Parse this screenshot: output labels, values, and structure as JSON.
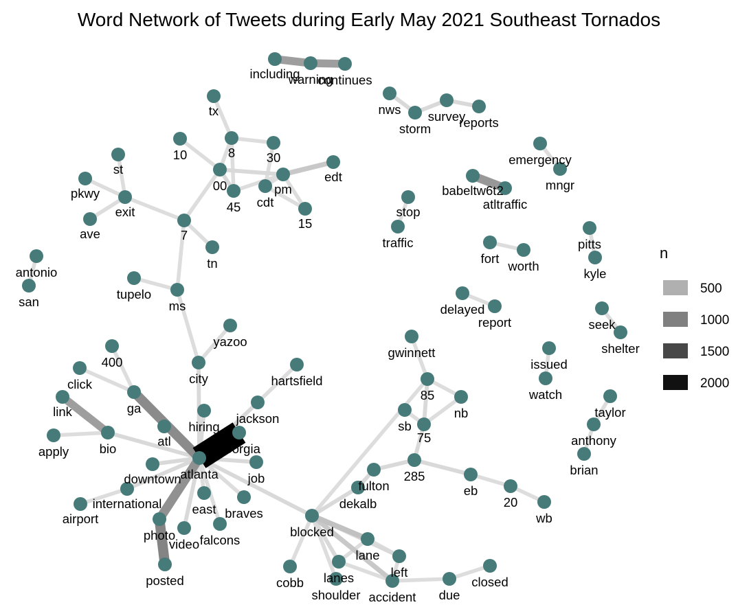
{
  "chart_data": {
    "type": "network",
    "title": "Word Network of Tweets during Early May 2021 Southeast Tornados",
    "node_color": "#467b7a",
    "edge_color_scale": [
      "#bdbdbd",
      "#000000"
    ],
    "legend": {
      "title": "n",
      "placement": "right",
      "entries": [
        {
          "label": "500",
          "n": 500,
          "color": "#b0b0b0"
        },
        {
          "label": "1000",
          "n": 1000,
          "color": "#808080"
        },
        {
          "label": "1500",
          "n": 1500,
          "color": "#474747"
        },
        {
          "label": "2000",
          "n": 2000,
          "color": "#111111"
        }
      ]
    },
    "nodes": [
      {
        "id": "including",
        "label": "including"
      },
      {
        "id": "warning",
        "label": "warning"
      },
      {
        "id": "continues",
        "label": "continues"
      },
      {
        "id": "nws",
        "label": "nws"
      },
      {
        "id": "storm",
        "label": "storm"
      },
      {
        "id": "survey",
        "label": "survey"
      },
      {
        "id": "reports",
        "label": "reports"
      },
      {
        "id": "tx",
        "label": "tx"
      },
      {
        "id": "10",
        "label": "10"
      },
      {
        "id": "8",
        "label": "8"
      },
      {
        "id": "30",
        "label": "30"
      },
      {
        "id": "00",
        "label": "00"
      },
      {
        "id": "edt",
        "label": "edt"
      },
      {
        "id": "pm",
        "label": "pm"
      },
      {
        "id": "45",
        "label": "45"
      },
      {
        "id": "cdt",
        "label": "cdt"
      },
      {
        "id": "15",
        "label": "15"
      },
      {
        "id": "st",
        "label": "st"
      },
      {
        "id": "pkwy",
        "label": "pkwy"
      },
      {
        "id": "exit",
        "label": "exit"
      },
      {
        "id": "ave",
        "label": "ave"
      },
      {
        "id": "7",
        "label": "7"
      },
      {
        "id": "tn",
        "label": "tn"
      },
      {
        "id": "emergency",
        "label": "emergency"
      },
      {
        "id": "mngr",
        "label": "mngr"
      },
      {
        "id": "babeltw6t2",
        "label": "babeltw6t2"
      },
      {
        "id": "atltraffic",
        "label": "atltraffic"
      },
      {
        "id": "stop",
        "label": "stop"
      },
      {
        "id": "traffic",
        "label": "traffic"
      },
      {
        "id": "pitts",
        "label": "pitts"
      },
      {
        "id": "kyle",
        "label": "kyle"
      },
      {
        "id": "fort",
        "label": "fort"
      },
      {
        "id": "worth",
        "label": "worth"
      },
      {
        "id": "antonio",
        "label": "antonio"
      },
      {
        "id": "san",
        "label": "san"
      },
      {
        "id": "tupelo",
        "label": "tupelo"
      },
      {
        "id": "ms",
        "label": "ms"
      },
      {
        "id": "delayed",
        "label": "delayed"
      },
      {
        "id": "report",
        "label": "report"
      },
      {
        "id": "seek",
        "label": "seek"
      },
      {
        "id": "shelter",
        "label": "shelter"
      },
      {
        "id": "yazoo",
        "label": "yazoo"
      },
      {
        "id": "gwinnett",
        "label": "gwinnett"
      },
      {
        "id": "issued",
        "label": "issued"
      },
      {
        "id": "watch",
        "label": "watch"
      },
      {
        "id": "400",
        "label": "400"
      },
      {
        "id": "hartsfield",
        "label": "hartsfield"
      },
      {
        "id": "city",
        "label": "city"
      },
      {
        "id": "click",
        "label": "click"
      },
      {
        "id": "85",
        "label": "85"
      },
      {
        "id": "nb",
        "label": "nb"
      },
      {
        "id": "taylor",
        "label": "taylor"
      },
      {
        "id": "link",
        "label": "link"
      },
      {
        "id": "ga",
        "label": "ga"
      },
      {
        "id": "jackson",
        "label": "jackson"
      },
      {
        "id": "sb",
        "label": "sb"
      },
      {
        "id": "75",
        "label": "75"
      },
      {
        "id": "anthony",
        "label": "anthony"
      },
      {
        "id": "hiring",
        "label": "hiring"
      },
      {
        "id": "apply",
        "label": "apply"
      },
      {
        "id": "bio",
        "label": "bio"
      },
      {
        "id": "atl",
        "label": "atl"
      },
      {
        "id": "georgia",
        "label": "georgia"
      },
      {
        "id": "brian",
        "label": "brian"
      },
      {
        "id": "atlanta",
        "label": "atlanta"
      },
      {
        "id": "job",
        "label": "job"
      },
      {
        "id": "downtown",
        "label": "downtown"
      },
      {
        "id": "285",
        "label": "285"
      },
      {
        "id": "fulton",
        "label": "fulton"
      },
      {
        "id": "eb",
        "label": "eb"
      },
      {
        "id": "international",
        "label": "international"
      },
      {
        "id": "dekalb",
        "label": "dekalb"
      },
      {
        "id": "20",
        "label": "20"
      },
      {
        "id": "east",
        "label": "east"
      },
      {
        "id": "braves",
        "label": "braves"
      },
      {
        "id": "airport",
        "label": "airport"
      },
      {
        "id": "wb",
        "label": "wb"
      },
      {
        "id": "photo",
        "label": "photo"
      },
      {
        "id": "blocked",
        "label": "blocked"
      },
      {
        "id": "video",
        "label": "video"
      },
      {
        "id": "falcons",
        "label": "falcons"
      },
      {
        "id": "lane",
        "label": "lane"
      },
      {
        "id": "left",
        "label": "left"
      },
      {
        "id": "posted",
        "label": "posted"
      },
      {
        "id": "lanes",
        "label": "lanes"
      },
      {
        "id": "cobb",
        "label": "cobb"
      },
      {
        "id": "closed",
        "label": "closed"
      },
      {
        "id": "shoulder",
        "label": "shoulder"
      },
      {
        "id": "accident",
        "label": "accident"
      },
      {
        "id": "due",
        "label": "due"
      }
    ],
    "edges": [
      {
        "from": "including",
        "to": "warning",
        "n": 650
      },
      {
        "from": "warning",
        "to": "continues",
        "n": 650
      },
      {
        "from": "nws",
        "to": "storm",
        "n": 300
      },
      {
        "from": "storm",
        "to": "survey",
        "n": 300
      },
      {
        "from": "survey",
        "to": "reports",
        "n": 300
      },
      {
        "from": "tx",
        "to": "8",
        "n": 280
      },
      {
        "from": "8",
        "to": "30",
        "n": 280
      },
      {
        "from": "8",
        "to": "00",
        "n": 280
      },
      {
        "from": "30",
        "to": "cdt",
        "n": 280
      },
      {
        "from": "00",
        "to": "pm",
        "n": 300
      },
      {
        "from": "00",
        "to": "45",
        "n": 300
      },
      {
        "from": "00",
        "to": "10",
        "n": 280
      },
      {
        "from": "00",
        "to": "7",
        "n": 280
      },
      {
        "from": "8",
        "to": "45",
        "n": 280
      },
      {
        "from": "45",
        "to": "pm",
        "n": 280
      },
      {
        "from": "pm",
        "to": "edt",
        "n": 380
      },
      {
        "from": "pm",
        "to": "cdt",
        "n": 280
      },
      {
        "from": "pm",
        "to": "15",
        "n": 280
      },
      {
        "from": "cdt",
        "to": "15",
        "n": 280
      },
      {
        "from": "st",
        "to": "exit",
        "n": 280
      },
      {
        "from": "pkwy",
        "to": "exit",
        "n": 280
      },
      {
        "from": "ave",
        "to": "exit",
        "n": 280
      },
      {
        "from": "exit",
        "to": "7",
        "n": 280
      },
      {
        "from": "7",
        "to": "tn",
        "n": 280
      },
      {
        "from": "emergency",
        "to": "mngr",
        "n": 280
      },
      {
        "from": "babeltw6t2",
        "to": "atltraffic",
        "n": 700
      },
      {
        "from": "stop",
        "to": "traffic",
        "n": 280
      },
      {
        "from": "pitts",
        "to": "kyle",
        "n": 280
      },
      {
        "from": "fort",
        "to": "worth",
        "n": 280
      },
      {
        "from": "antonio",
        "to": "san",
        "n": 280
      },
      {
        "from": "tupelo",
        "to": "ms",
        "n": 280
      },
      {
        "from": "ms",
        "to": "7",
        "n": 280
      },
      {
        "from": "ms",
        "to": "city",
        "n": 280
      },
      {
        "from": "delayed",
        "to": "report",
        "n": 280
      },
      {
        "from": "seek",
        "to": "shelter",
        "n": 280
      },
      {
        "from": "yazoo",
        "to": "city",
        "n": 280
      },
      {
        "from": "issued",
        "to": "watch",
        "n": 280
      },
      {
        "from": "gwinnett",
        "to": "85",
        "n": 280
      },
      {
        "from": "85",
        "to": "nb",
        "n": 280
      },
      {
        "from": "85",
        "to": "75",
        "n": 300
      },
      {
        "from": "nb",
        "to": "75",
        "n": 280
      },
      {
        "from": "sb",
        "to": "75",
        "n": 280
      },
      {
        "from": "75",
        "to": "285",
        "n": 300
      },
      {
        "from": "85",
        "to": "blocked",
        "n": 280
      },
      {
        "from": "285",
        "to": "fulton",
        "n": 300
      },
      {
        "from": "285",
        "to": "eb",
        "n": 300
      },
      {
        "from": "eb",
        "to": "20",
        "n": 280
      },
      {
        "from": "20",
        "to": "wb",
        "n": 280
      },
      {
        "from": "fulton",
        "to": "dekalb",
        "n": 300
      },
      {
        "from": "dekalb",
        "to": "blocked",
        "n": 300
      },
      {
        "from": "taylor",
        "to": "anthony",
        "n": 280
      },
      {
        "from": "anthony",
        "to": "brian",
        "n": 280
      },
      {
        "from": "city",
        "to": "atlanta",
        "n": 300
      },
      {
        "from": "hartsfield",
        "to": "jackson",
        "n": 280
      },
      {
        "from": "jackson",
        "to": "atlanta",
        "n": 300
      },
      {
        "from": "hiring",
        "to": "atlanta",
        "n": 300
      },
      {
        "from": "400",
        "to": "ga",
        "n": 280
      },
      {
        "from": "click",
        "to": "ga",
        "n": 280
      },
      {
        "from": "ga",
        "to": "atlanta",
        "n": 800
      },
      {
        "from": "link",
        "to": "bio",
        "n": 650
      },
      {
        "from": "apply",
        "to": "bio",
        "n": 280
      },
      {
        "from": "bio",
        "to": "atlanta",
        "n": 300
      },
      {
        "from": "atl",
        "to": "atlanta",
        "n": 300
      },
      {
        "from": "atlanta",
        "to": "georgia",
        "n": 2100
      },
      {
        "from": "atlanta",
        "to": "job",
        "n": 300
      },
      {
        "from": "atlanta",
        "to": "downtown",
        "n": 300
      },
      {
        "from": "atlanta",
        "to": "international",
        "n": 300
      },
      {
        "from": "international",
        "to": "airport",
        "n": 280
      },
      {
        "from": "atlanta",
        "to": "photo",
        "n": 750
      },
      {
        "from": "photo",
        "to": "posted",
        "n": 850
      },
      {
        "from": "atlanta",
        "to": "video",
        "n": 300
      },
      {
        "from": "atlanta",
        "to": "east",
        "n": 280
      },
      {
        "from": "atlanta",
        "to": "falcons",
        "n": 280
      },
      {
        "from": "atlanta",
        "to": "braves",
        "n": 280
      },
      {
        "from": "atlanta",
        "to": "blocked",
        "n": 300
      },
      {
        "from": "blocked",
        "to": "lane",
        "n": 420
      },
      {
        "from": "blocked",
        "to": "left",
        "n": 300
      },
      {
        "from": "blocked",
        "to": "lanes",
        "n": 300
      },
      {
        "from": "blocked",
        "to": "cobb",
        "n": 280
      },
      {
        "from": "blocked",
        "to": "shoulder",
        "n": 280
      },
      {
        "from": "blocked",
        "to": "accident",
        "n": 380
      },
      {
        "from": "lane",
        "to": "left",
        "n": 280
      },
      {
        "from": "lane",
        "to": "lanes",
        "n": 280
      },
      {
        "from": "lanes",
        "to": "accident",
        "n": 280
      },
      {
        "from": "left",
        "to": "accident",
        "n": 280
      },
      {
        "from": "accident",
        "to": "due",
        "n": 280
      },
      {
        "from": "due",
        "to": "closed",
        "n": 280
      }
    ]
  }
}
